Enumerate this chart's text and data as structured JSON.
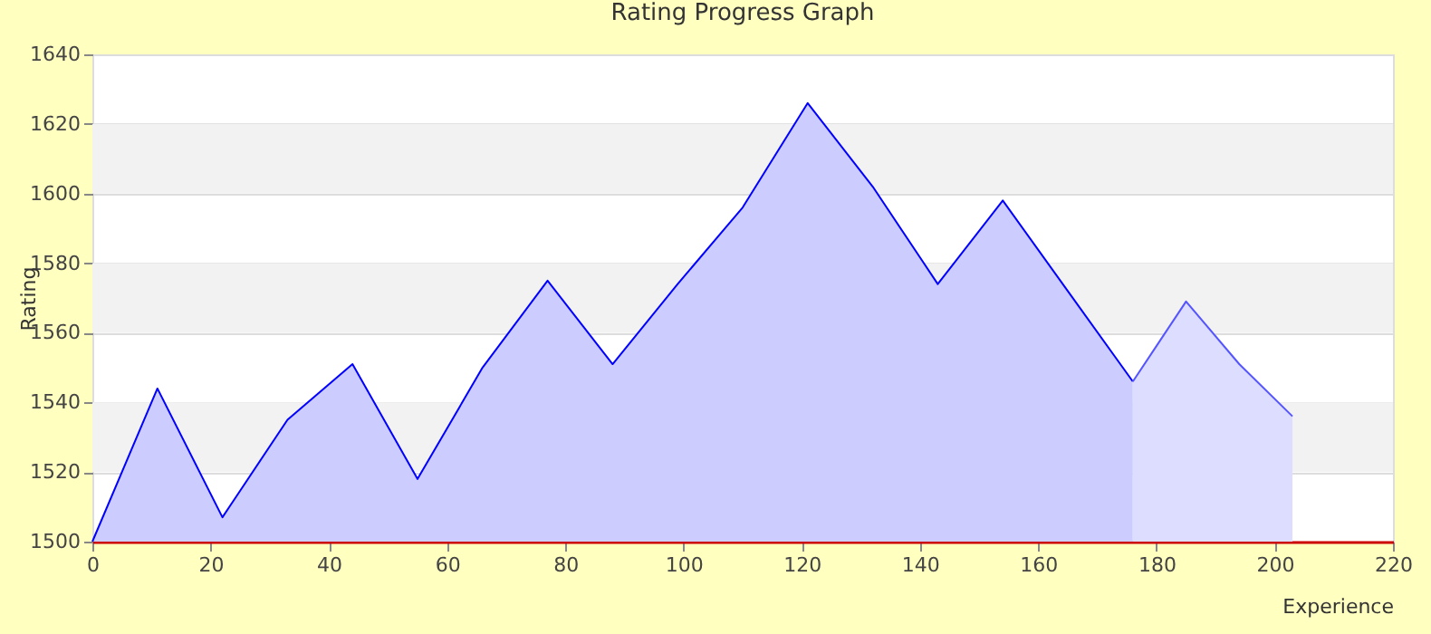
{
  "chart_data": {
    "type": "area",
    "title": "Rating Progress Graph",
    "xlabel": "Experience",
    "ylabel": "Rating",
    "series": [
      {
        "color": "#0000ff",
        "x": [
          0,
          11,
          22,
          33,
          44,
          55,
          66,
          77,
          88,
          99,
          110,
          121,
          132,
          143,
          154,
          165,
          176
        ],
        "values": [
          1500,
          1544,
          1507,
          1535,
          1551,
          1518,
          1550,
          1575,
          1551,
          1574,
          1596,
          1626,
          1602,
          1574,
          1598,
          1572,
          1546
        ]
      },
      {
        "color": "#5555ff",
        "x": [
          176,
          185,
          194,
          203
        ],
        "values": [
          1546,
          1569,
          1551,
          1536
        ]
      }
    ],
    "xlim": [
      0,
      220
    ],
    "xticks": [
      0,
      20,
      40,
      60,
      80,
      100,
      120,
      140,
      160,
      180,
      200,
      220
    ],
    "ylim": [
      1500,
      1640
    ],
    "yticks": [
      1500,
      1520,
      1540,
      1560,
      1580,
      1600,
      1620,
      1640
    ],
    "bands": [
      {
        "axis": "y",
        "from": 1520,
        "to": 1540,
        "color": "#f2f2f2"
      },
      {
        "axis": "y",
        "from": 1560,
        "to": 1580,
        "color": "#f2f2f2"
      },
      {
        "axis": "y",
        "from": 1600,
        "to": 1620,
        "color": "#f2f2f2"
      }
    ],
    "grid": "y"
  }
}
